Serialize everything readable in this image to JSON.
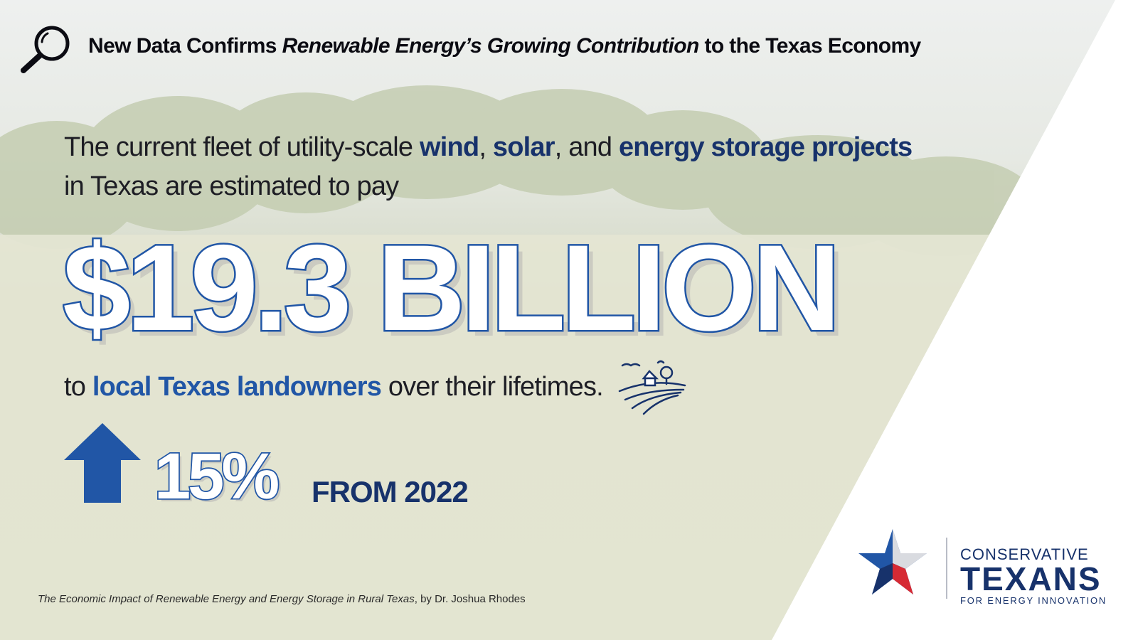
{
  "headline": {
    "part1": "New Data Confirms ",
    "italic": "Renewable Energy’s Growing Contribution",
    "part2": " to the Texas Economy"
  },
  "intro": {
    "t1": "The current fleet of utility-scale ",
    "wind": "wind",
    "comma": ", ",
    "solar": "solar",
    "and": ", and ",
    "storage": "energy storage projects",
    "line2": "in Texas are estimated to pay"
  },
  "amount": "$19.3 BILLION",
  "line3": {
    "t1": "to ",
    "landowners": "local Texas landowners",
    "t2": " over their lifetimes."
  },
  "growth": {
    "percent": "15%",
    "from": "FROM 2022"
  },
  "citation": {
    "title": "The Economic Impact of Renewable Energy and Energy Storage in Rural Texas",
    "author": ", by Dr. Joshua Rhodes"
  },
  "logo": {
    "line1": "CONSERVATIVE",
    "line2": "TEXANS",
    "line3": "FOR ENERGY INNOVATION"
  },
  "colors": {
    "navy": "#17326b",
    "blue": "#2156a6",
    "red": "#d62a34",
    "overlay": "#f3f3e8"
  },
  "icons": [
    "search-icon",
    "arrow-up-icon",
    "farm-icon",
    "texas-star-icon"
  ]
}
